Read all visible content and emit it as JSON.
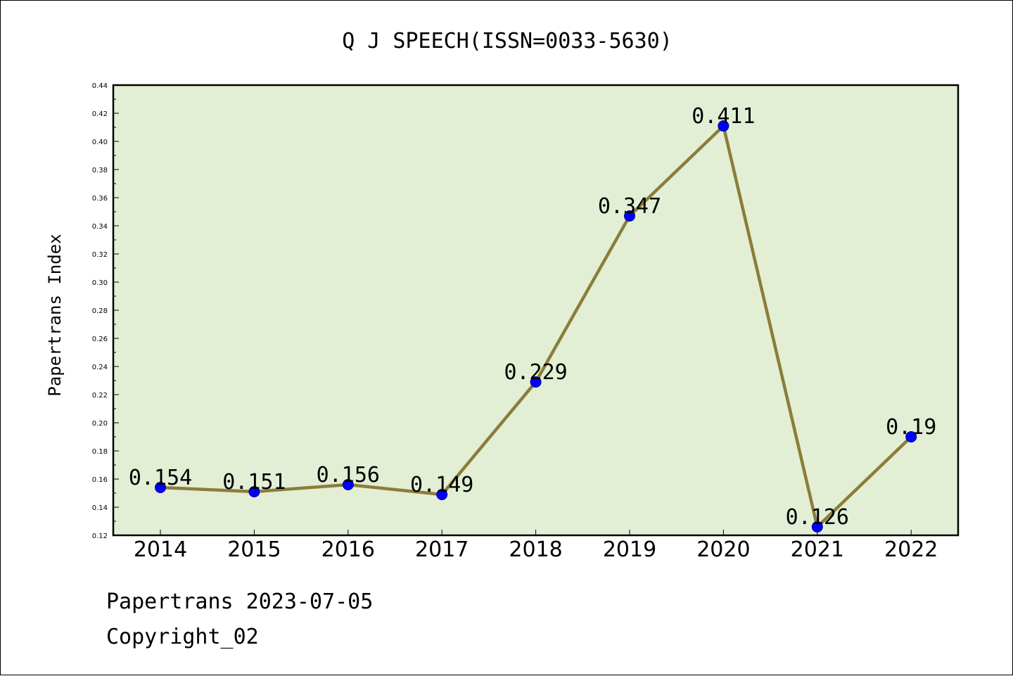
{
  "chart_data": {
    "type": "line",
    "title": "Q J SPEECH(ISSN=0033-5630)",
    "ylabel": "Papertrans Index",
    "xlabel": "",
    "categories": [
      "2014",
      "2015",
      "2016",
      "2017",
      "2018",
      "2019",
      "2020",
      "2021",
      "2022"
    ],
    "series": [
      {
        "values": [
          0.154,
          0.151,
          0.156,
          0.149,
          0.229,
          0.347,
          0.411,
          0.126,
          0.19
        ],
        "data_labels": [
          "0.154",
          "0.151",
          "0.156",
          "0.149",
          "0.229",
          "0.347",
          "0.411",
          "0.126",
          "0.19"
        ]
      }
    ],
    "ylim": [
      0.12,
      0.44
    ],
    "yticks": [
      "0.12",
      "0.14",
      "0.16",
      "0.18",
      "0.20",
      "0.22",
      "0.24",
      "0.26",
      "0.28",
      "0.30",
      "0.32",
      "0.34",
      "0.36",
      "0.38",
      "0.40",
      "0.42",
      "0.44"
    ],
    "grid": false,
    "colors": {
      "plot_background": "#e2efd5",
      "line": "#8b7d3a",
      "marker": "#0000ff"
    }
  },
  "footer": {
    "line1": "Papertrans 2023-07-05",
    "line2": "Copyright_02"
  }
}
